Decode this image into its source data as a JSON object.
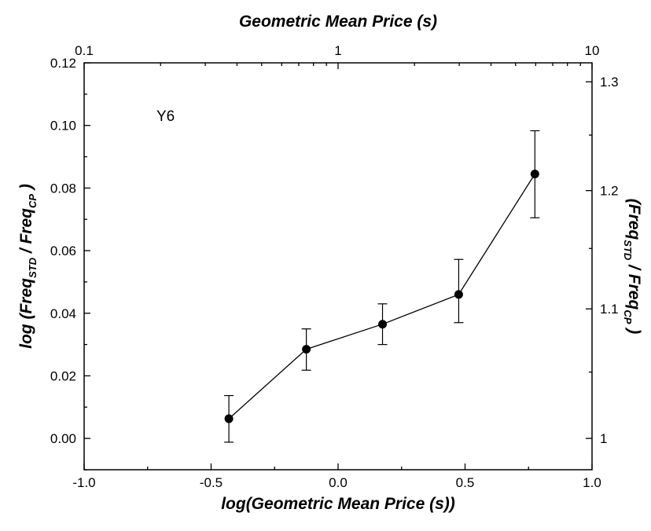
{
  "chart_data": {
    "type": "scatter",
    "annotation": "Y6",
    "xlabel": "log(Geometric Mean Price (s))",
    "ylabel_main": "log (Freq",
    "ylabel_sub1": "STD",
    "ylabel_mid": " / Freq",
    "ylabel_sub2": "CP",
    "ylabel_end": " )",
    "top_xlabel": "Geometric Mean Price (s)",
    "right_ylabel_main": "(Freq",
    "right_ylabel_sub1": "STD",
    "right_ylabel_mid": " / Freq",
    "right_ylabel_sub2": "CP",
    "right_ylabel_end": " )",
    "xlim": [
      -1.0,
      1.0
    ],
    "ylim": [
      -0.01,
      0.12
    ],
    "x_ticks": [
      -1.0,
      -0.5,
      0.0,
      0.5,
      1.0
    ],
    "x_tick_labels": [
      "-1.0",
      "-0.5",
      "0.0",
      "0.5",
      "1.0"
    ],
    "y_ticks": [
      0.0,
      0.02,
      0.04,
      0.06,
      0.08,
      0.1,
      0.12
    ],
    "y_tick_labels": [
      "0.00",
      "0.02",
      "0.04",
      "0.06",
      "0.08",
      "0.10",
      "0.12"
    ],
    "top_ticks": [
      0.1,
      1,
      10
    ],
    "top_tick_labels": [
      "0.1",
      "1",
      "10"
    ],
    "right_ticks": [
      1.0,
      1.1,
      1.2,
      1.3
    ],
    "right_tick_labels": [
      "1",
      "1.1",
      "1.2",
      "1.3"
    ],
    "grid": false,
    "series": [
      {
        "x": [
          -0.43,
          -0.125,
          0.175,
          0.475,
          0.775
        ],
        "y": [
          0.0063,
          0.0285,
          0.0365,
          0.046,
          0.0845
        ],
        "yerr_low": [
          -0.0012,
          0.0218,
          0.03,
          0.037,
          0.0705
        ],
        "yerr_high": [
          0.0137,
          0.035,
          0.043,
          0.0572,
          0.0983
        ]
      }
    ]
  }
}
